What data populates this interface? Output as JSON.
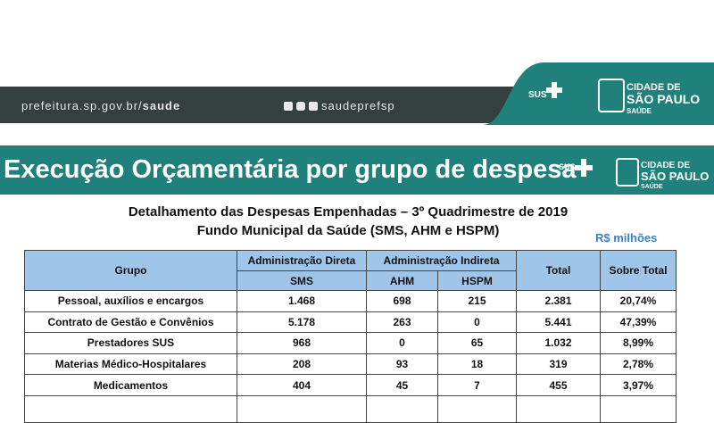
{
  "header": {
    "site_prefix": "prefeitura.sp.gov.br/",
    "site_bold": "saude",
    "social": "saudeprefsp",
    "sus": "SUS",
    "logo_line1": "CIDADE DE",
    "logo_line2": "SÃO PAULO",
    "logo_line3": "SAÚDE"
  },
  "title": "Execução Orçamentária por grupo de despesa",
  "subtitle1": "Detalhamento das Despesas Empenhadas – 3º Quadrimestre de 2019",
  "subtitle2": "Fundo Municipal da Saúde (SMS, AHM e HSPM)",
  "unit": "R$ milhões",
  "table": {
    "header": {
      "group": "Grupo",
      "direct": "Administração Direta",
      "indirect": "Administração Indireta",
      "sms": "SMS",
      "ahm": "AHM",
      "hspm": "HSPM",
      "total": "Total",
      "share": "Sobre Total"
    },
    "rows": [
      [
        "Pessoal, auxílios e encargos",
        "1.468",
        "698",
        "215",
        "2.381",
        "20,74%"
      ],
      [
        "Contrato de Gestão e Convênios",
        "5.178",
        "263",
        "0",
        "5.441",
        "47,39%"
      ],
      [
        "Prestadores SUS",
        "968",
        "0",
        "65",
        "1.032",
        "8,99%"
      ],
      [
        "Materias Médico-Hospitalares",
        "208",
        "93",
        "18",
        "319",
        "2,78%"
      ],
      [
        "Medicamentos",
        "404",
        "45",
        "7",
        "455",
        "3,97%"
      ]
    ]
  }
}
